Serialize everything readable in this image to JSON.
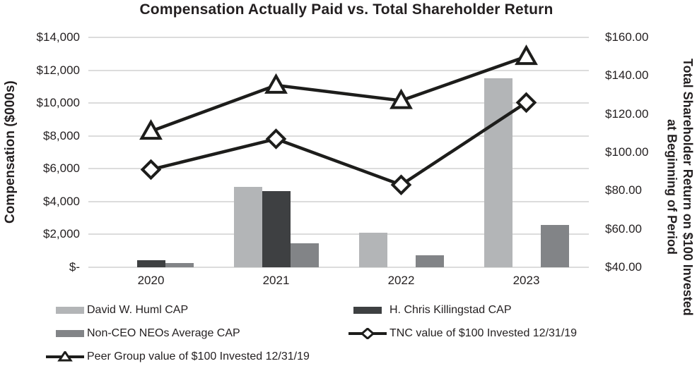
{
  "title": "Compensation Actually Paid vs. Total Shareholder Return",
  "right_axis_label_lines": {
    "line1": "Total Shareholder Return on $100 Invested",
    "line2": "at Beginning of Period"
  },
  "colors": {
    "bar_light": "#b3b5b7",
    "bar_dark": "#3e4042",
    "bar_mid": "#828487",
    "line": "#1d1d1b",
    "marker_fill": "#ffffff",
    "grid": "#dcdcdc",
    "text": "#231f20"
  },
  "chart_data": {
    "type": "bar+line combo",
    "title": "Compensation Actually Paid vs. Total Shareholder Return",
    "categories": [
      "2020",
      "2021",
      "2022",
      "2023"
    ],
    "bar_series": [
      {
        "name": "David W. Huml CAP",
        "color_key": "bar_light",
        "axis": "left",
        "values": [
          null,
          4900,
          2100,
          11500
        ]
      },
      {
        "name": "H. Chris Killingstad CAP",
        "color_key": "bar_dark",
        "axis": "left",
        "values": [
          450,
          4650,
          null,
          null
        ]
      },
      {
        "name": "Non-CEO NEOs Average CAP",
        "color_key": "bar_mid",
        "axis": "left",
        "values": [
          250,
          1480,
          750,
          2570
        ]
      }
    ],
    "line_series": [
      {
        "name": "TNC value of $100 Invested 12/31/19",
        "marker": "diamond",
        "axis": "right",
        "values": [
          91,
          107,
          83,
          126
        ]
      },
      {
        "name": "Peer Group value of $100 Invested 12/31/19",
        "marker": "triangle",
        "axis": "right",
        "values": [
          111,
          135,
          127,
          150
        ]
      }
    ],
    "left_axis": {
      "label": "Compensation ($000s)",
      "min": 0,
      "max": 14000,
      "step": 2000,
      "tick_labels": [
        "$14,000",
        "$12,000",
        "$10,000",
        "$8,000",
        "$6,000",
        "$4,000",
        "$2,000",
        "$-"
      ]
    },
    "right_axis": {
      "label": "Total Shareholder Return on $100 Invested at Beginning of Period",
      "min": 40,
      "max": 160,
      "step": 20,
      "tick_labels": [
        "$160.00",
        "$140.00",
        "$120.00",
        "$100.00",
        "$80.00",
        "$60.00",
        "$40.00"
      ]
    },
    "grid": true,
    "legend_position": "bottom"
  },
  "legend": {
    "columns": [
      [
        {
          "glyph": "bar",
          "color_key": "bar_light",
          "label": "David W. Huml CAP"
        },
        {
          "glyph": "bar",
          "color_key": "bar_mid",
          "label": "Non-CEO NEOs Average CAP"
        },
        {
          "glyph": "line-triangle",
          "label": "Peer Group value of $100 Invested 12/31/19"
        }
      ],
      [
        {
          "glyph": "bar",
          "color_key": "bar_dark",
          "label": "H. Chris Killingstad CAP"
        },
        {
          "glyph": "line-diamond",
          "label": "TNC value of $100 Invested 12/31/19"
        }
      ]
    ]
  }
}
